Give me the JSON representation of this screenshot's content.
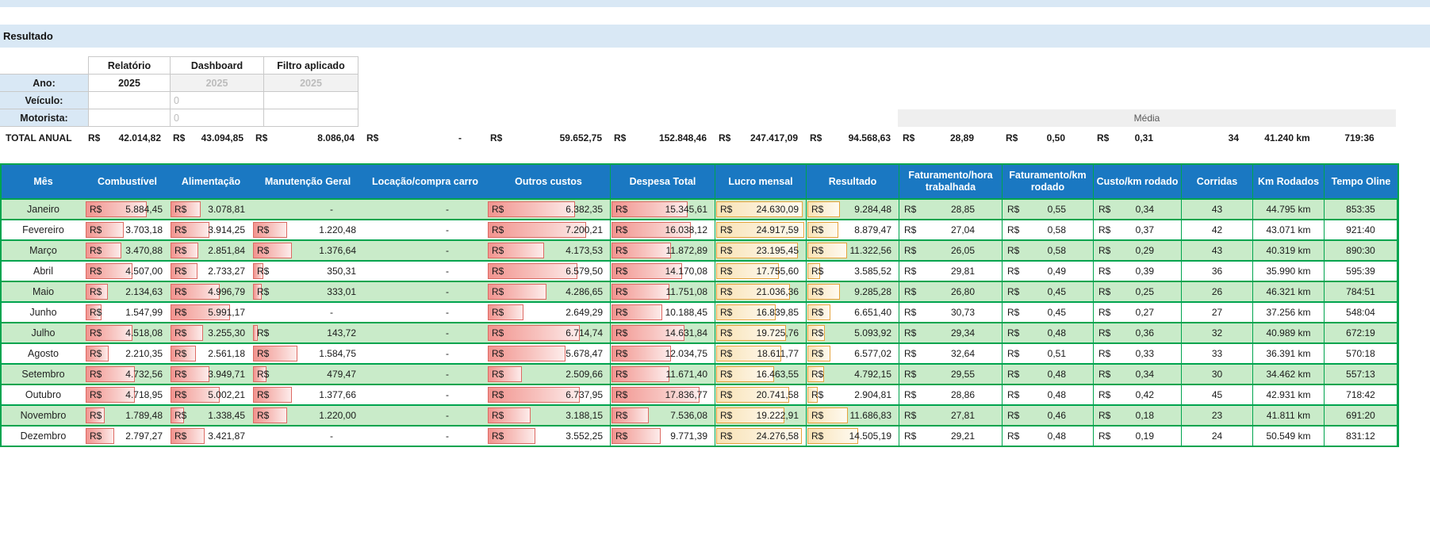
{
  "page": {
    "title_band": "Resultado"
  },
  "currency_symbol": "R$",
  "filter_table": {
    "col_headers": [
      "Relatório",
      "Dashboard",
      "Filtro aplicado"
    ],
    "rows": [
      {
        "label": "Ano:",
        "relatorio": "2025",
        "dashboard": "2025",
        "filtro": "2025"
      },
      {
        "label": "Veículo:",
        "relatorio": "",
        "dashboard": "0",
        "filtro": ""
      },
      {
        "label": "Motorista:",
        "relatorio": "",
        "dashboard": "0",
        "filtro": ""
      }
    ]
  },
  "media_label": "Média",
  "total_row": {
    "label": "TOTAL ANUAL",
    "values": [
      "42.014,82",
      "43.094,85",
      "8.086,04",
      "-",
      "59.652,75",
      "152.848,46",
      "247.417,09",
      "94.568,63",
      "28,89",
      "0,50",
      "0,31",
      "34",
      "41.240 km",
      "719:36"
    ]
  },
  "table": {
    "headers": [
      "Mês",
      "Combustível",
      "Alimentação",
      "Manutenção Geral",
      "Locação/compra carro",
      "Outros custos",
      "Despesa Total",
      "Lucro mensal",
      "Resultado",
      "Faturamento/hora trabalhada",
      "Faturamento/km rodado",
      "Custo/km rodado",
      "Corridas",
      "Km Rodados",
      "Tempo Oline"
    ],
    "rows": [
      {
        "mes": "Janeiro",
        "values": [
          "5.884,45",
          "3.078,81",
          "-",
          "-",
          "6.382,35",
          "15.345,61",
          "24.630,09",
          "9.284,48",
          "28,85",
          "0,55",
          "0,34",
          "43",
          "44.795 km",
          "853:35"
        ]
      },
      {
        "mes": "Fevereiro",
        "values": [
          "3.703,18",
          "3.914,25",
          "1.220,48",
          "-",
          "7.200,21",
          "16.038,12",
          "24.917,59",
          "8.879,47",
          "27,04",
          "0,58",
          "0,37",
          "42",
          "43.071 km",
          "921:40"
        ]
      },
      {
        "mes": "Março",
        "values": [
          "3.470,88",
          "2.851,84",
          "1.376,64",
          "-",
          "4.173,53",
          "11.872,89",
          "23.195,45",
          "11.322,56",
          "26,05",
          "0,58",
          "0,29",
          "43",
          "40.319 km",
          "890:30"
        ]
      },
      {
        "mes": "Abril",
        "values": [
          "4.507,00",
          "2.733,27",
          "350,31",
          "-",
          "6.579,50",
          "14.170,08",
          "17.755,60",
          "3.585,52",
          "29,81",
          "0,49",
          "0,39",
          "36",
          "35.990 km",
          "595:39"
        ]
      },
      {
        "mes": "Maio",
        "values": [
          "2.134,63",
          "4.996,79",
          "333,01",
          "-",
          "4.286,65",
          "11.751,08",
          "21.036,36",
          "9.285,28",
          "26,80",
          "0,45",
          "0,25",
          "26",
          "46.321 km",
          "784:51"
        ]
      },
      {
        "mes": "Junho",
        "values": [
          "1.547,99",
          "5.991,17",
          "-",
          "-",
          "2.649,29",
          "10.188,45",
          "16.839,85",
          "6.651,40",
          "30,73",
          "0,45",
          "0,27",
          "27",
          "37.256 km",
          "548:04"
        ]
      },
      {
        "mes": "Julho",
        "values": [
          "4.518,08",
          "3.255,30",
          "143,72",
          "-",
          "6.714,74",
          "14.631,84",
          "19.725,76",
          "5.093,92",
          "29,34",
          "0,48",
          "0,36",
          "32",
          "40.989 km",
          "672:19"
        ]
      },
      {
        "mes": "Agosto",
        "values": [
          "2.210,35",
          "2.561,18",
          "1.584,75",
          "-",
          "5.678,47",
          "12.034,75",
          "18.611,77",
          "6.577,02",
          "32,64",
          "0,51",
          "0,33",
          "33",
          "36.391 km",
          "570:18"
        ]
      },
      {
        "mes": "Setembro",
        "values": [
          "4.732,56",
          "3.949,71",
          "479,47",
          "-",
          "2.509,66",
          "11.671,40",
          "16.463,55",
          "4.792,15",
          "29,55",
          "0,48",
          "0,34",
          "30",
          "34.462 km",
          "557:13"
        ]
      },
      {
        "mes": "Outubro",
        "values": [
          "4.718,95",
          "5.002,21",
          "1.377,66",
          "-",
          "6.737,95",
          "17.836,77",
          "20.741,58",
          "2.904,81",
          "28,86",
          "0,48",
          "0,42",
          "45",
          "42.931 km",
          "718:42"
        ]
      },
      {
        "mes": "Novembro",
        "values": [
          "1.789,48",
          "1.338,45",
          "1.220,00",
          "-",
          "3.188,15",
          "7.536,08",
          "19.222,91",
          "11.686,83",
          "27,81",
          "0,46",
          "0,18",
          "23",
          "41.811 km",
          "691:20"
        ]
      },
      {
        "mes": "Dezembro",
        "values": [
          "2.797,27",
          "3.421,87",
          "-",
          "-",
          "3.552,25",
          "9.771,39",
          "24.276,58",
          "14.505,19",
          "29,21",
          "0,48",
          "0,19",
          "24",
          "50.549 km",
          "831:12"
        ]
      }
    ]
  },
  "colors": {
    "light-blue": "#d9e8f5",
    "header-blue": "#1a78c2",
    "row-green": "#c9ebc9",
    "green-border": "#00a44e",
    "bar-red-border": "#dd6a63",
    "bar-yellow-border": "#e7a33c"
  }
}
